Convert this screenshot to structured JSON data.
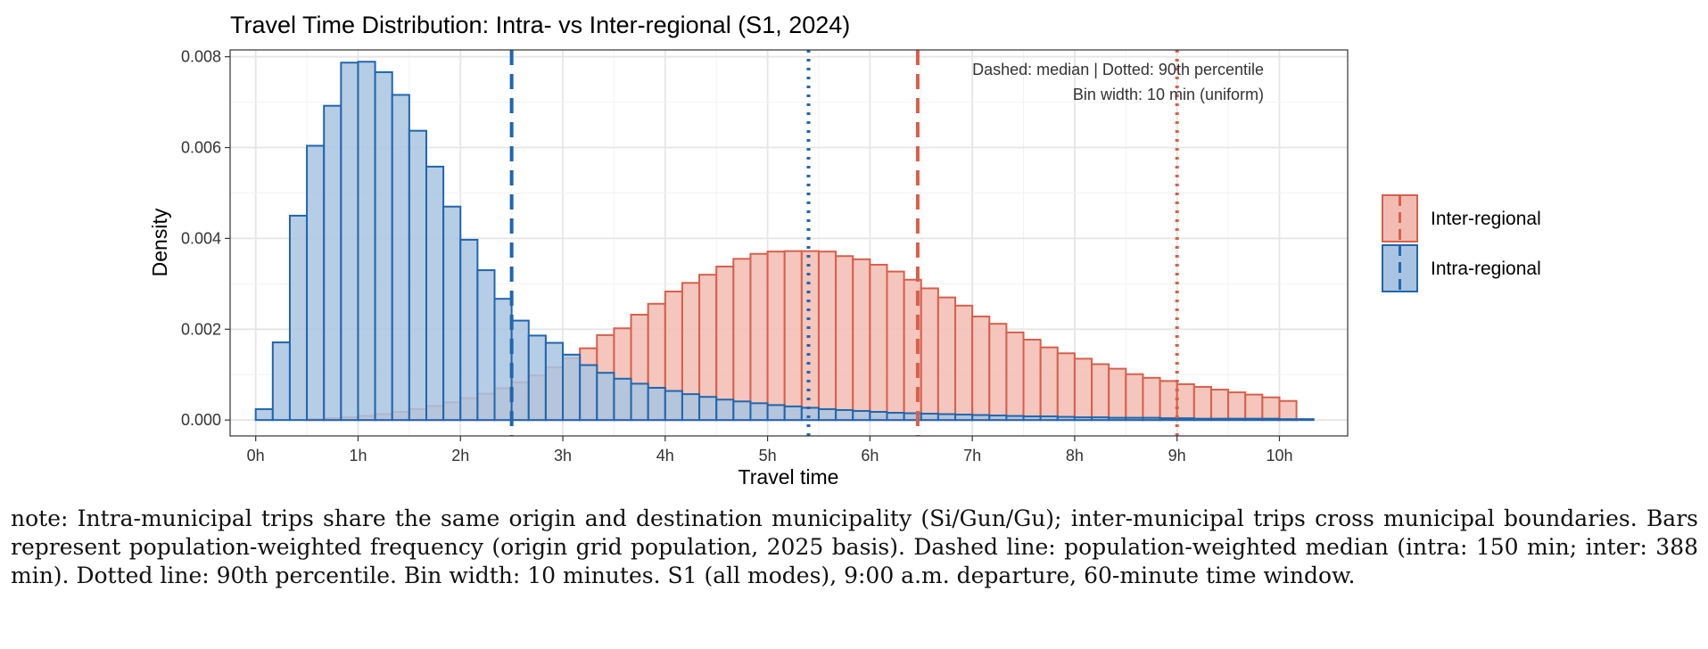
{
  "chart_data": {
    "type": "bar",
    "title": "Travel Time Distribution: Intra- vs Inter-regional (S1, 2024)",
    "xlabel": "Travel time",
    "ylabel": "Density",
    "xlim_minutes": [
      -15,
      640
    ],
    "ylim": [
      -0.00035,
      0.00815
    ],
    "bin_width_minutes": 10,
    "x_ticks": [
      {
        "value": 0,
        "label": "0h"
      },
      {
        "value": 60,
        "label": "1h"
      },
      {
        "value": 120,
        "label": "2h"
      },
      {
        "value": 180,
        "label": "3h"
      },
      {
        "value": 240,
        "label": "4h"
      },
      {
        "value": 300,
        "label": "5h"
      },
      {
        "value": 360,
        "label": "6h"
      },
      {
        "value": 420,
        "label": "7h"
      },
      {
        "value": 480,
        "label": "8h"
      },
      {
        "value": 540,
        "label": "9h"
      },
      {
        "value": 600,
        "label": "10h"
      }
    ],
    "y_ticks": [
      {
        "value": 0,
        "label": "0.000"
      },
      {
        "value": 0.002,
        "label": "0.002"
      },
      {
        "value": 0.004,
        "label": "0.004"
      },
      {
        "value": 0.006,
        "label": "0.006"
      },
      {
        "value": 0.008,
        "label": "0.008"
      }
    ],
    "grid": true,
    "legend_position": "right",
    "annotations": [
      "Dashed: median | Dotted: 90th percentile",
      "Bin width: 10 min (uniform)"
    ],
    "series": [
      {
        "name": "Inter-regional",
        "fill": "#F2BCB2",
        "stroke": "#D6604D",
        "bin_starts_minutes": [
          0,
          10,
          20,
          30,
          40,
          50,
          60,
          70,
          80,
          90,
          100,
          110,
          120,
          130,
          140,
          150,
          160,
          170,
          180,
          190,
          200,
          210,
          220,
          230,
          240,
          250,
          260,
          270,
          280,
          290,
          300,
          310,
          320,
          330,
          340,
          350,
          360,
          370,
          380,
          390,
          400,
          410,
          420,
          430,
          440,
          450,
          460,
          470,
          480,
          490,
          500,
          510,
          520,
          530,
          540,
          550,
          560,
          570,
          580,
          590,
          600
        ],
        "values": [
          0,
          0,
          0,
          2e-05,
          4e-05,
          6e-05,
          9e-05,
          0.00013,
          0.00018,
          0.00024,
          0.00031,
          0.00039,
          0.00048,
          0.00058,
          0.0007,
          0.00083,
          0.00098,
          0.00116,
          0.00136,
          0.00158,
          0.00187,
          0.00202,
          0.00232,
          0.00256,
          0.00283,
          0.00302,
          0.0032,
          0.00338,
          0.00355,
          0.00366,
          0.00371,
          0.00372,
          0.00372,
          0.00371,
          0.00361,
          0.00354,
          0.00342,
          0.00327,
          0.00309,
          0.0029,
          0.0027,
          0.00252,
          0.00228,
          0.00212,
          0.00193,
          0.00177,
          0.0016,
          0.00147,
          0.00135,
          0.00123,
          0.00113,
          0.00101,
          0.00093,
          0.00086,
          0.00079,
          0.00073,
          0.00067,
          0.00061,
          0.00056,
          0.0005,
          0.00042
        ]
      },
      {
        "name": "Intra-regional",
        "fill": "#A9C4E2",
        "stroke": "#2166AC",
        "bin_starts_minutes": [
          0,
          10,
          20,
          30,
          40,
          50,
          60,
          70,
          80,
          90,
          100,
          110,
          120,
          130,
          140,
          150,
          160,
          170,
          180,
          190,
          200,
          210,
          220,
          230,
          240,
          250,
          260,
          270,
          280,
          290,
          300,
          310,
          320,
          330,
          340,
          350,
          360,
          370,
          380,
          390,
          400,
          410,
          420,
          430,
          440,
          450,
          460,
          470,
          480,
          490,
          500,
          510,
          520,
          530,
          540,
          550,
          560,
          570,
          580,
          590,
          600,
          610
        ],
        "values": [
          0.00024,
          0.00171,
          0.0045,
          0.00604,
          0.00692,
          0.00787,
          0.00789,
          0.00766,
          0.00716,
          0.00637,
          0.00558,
          0.0047,
          0.00397,
          0.0033,
          0.00267,
          0.00219,
          0.00186,
          0.0017,
          0.00144,
          0.00121,
          0.00104,
          0.00091,
          0.0008,
          0.00071,
          0.00064,
          0.00057,
          0.00051,
          0.00045,
          0.00041,
          0.00037,
          0.00033,
          0.0003,
          0.00027,
          0.00024,
          0.00022,
          0.0002,
          0.00018,
          0.00016,
          0.00015,
          0.00014,
          0.00013,
          0.00012,
          0.00011,
          0.0001,
          9e-05,
          8e-05,
          8e-05,
          7e-05,
          6e-05,
          6e-05,
          5e-05,
          5e-05,
          5e-05,
          4e-05,
          4e-05,
          3e-05,
          3e-05,
          3e-05,
          3e-05,
          3e-05,
          2e-05,
          2e-05
        ]
      }
    ],
    "reference_lines": [
      {
        "series": "Intra-regional",
        "kind": "median",
        "style": "dashed",
        "x_minutes": 150
      },
      {
        "series": "Intra-regional",
        "kind": "90th percentile",
        "style": "dotted",
        "x_minutes": 324
      },
      {
        "series": "Inter-regional",
        "kind": "median",
        "style": "dashed",
        "x_minutes": 388
      },
      {
        "series": "Inter-regional",
        "kind": "90th percentile",
        "style": "dotted",
        "x_minutes": 540
      }
    ]
  },
  "note": "note: Intra-municipal trips share the same origin and destination municipality (Si/Gun/Gu); inter-municipal trips cross municipal boundaries. Bars represent population-weighted frequency (origin grid population, 2025 basis). Dashed line: population-weighted median (intra: 150 min; inter: 388 min). Dotted line: 90th percentile. Bin width: 10 minutes. S1 (all modes), 9:00 a.m. departure, 60-minute time window."
}
